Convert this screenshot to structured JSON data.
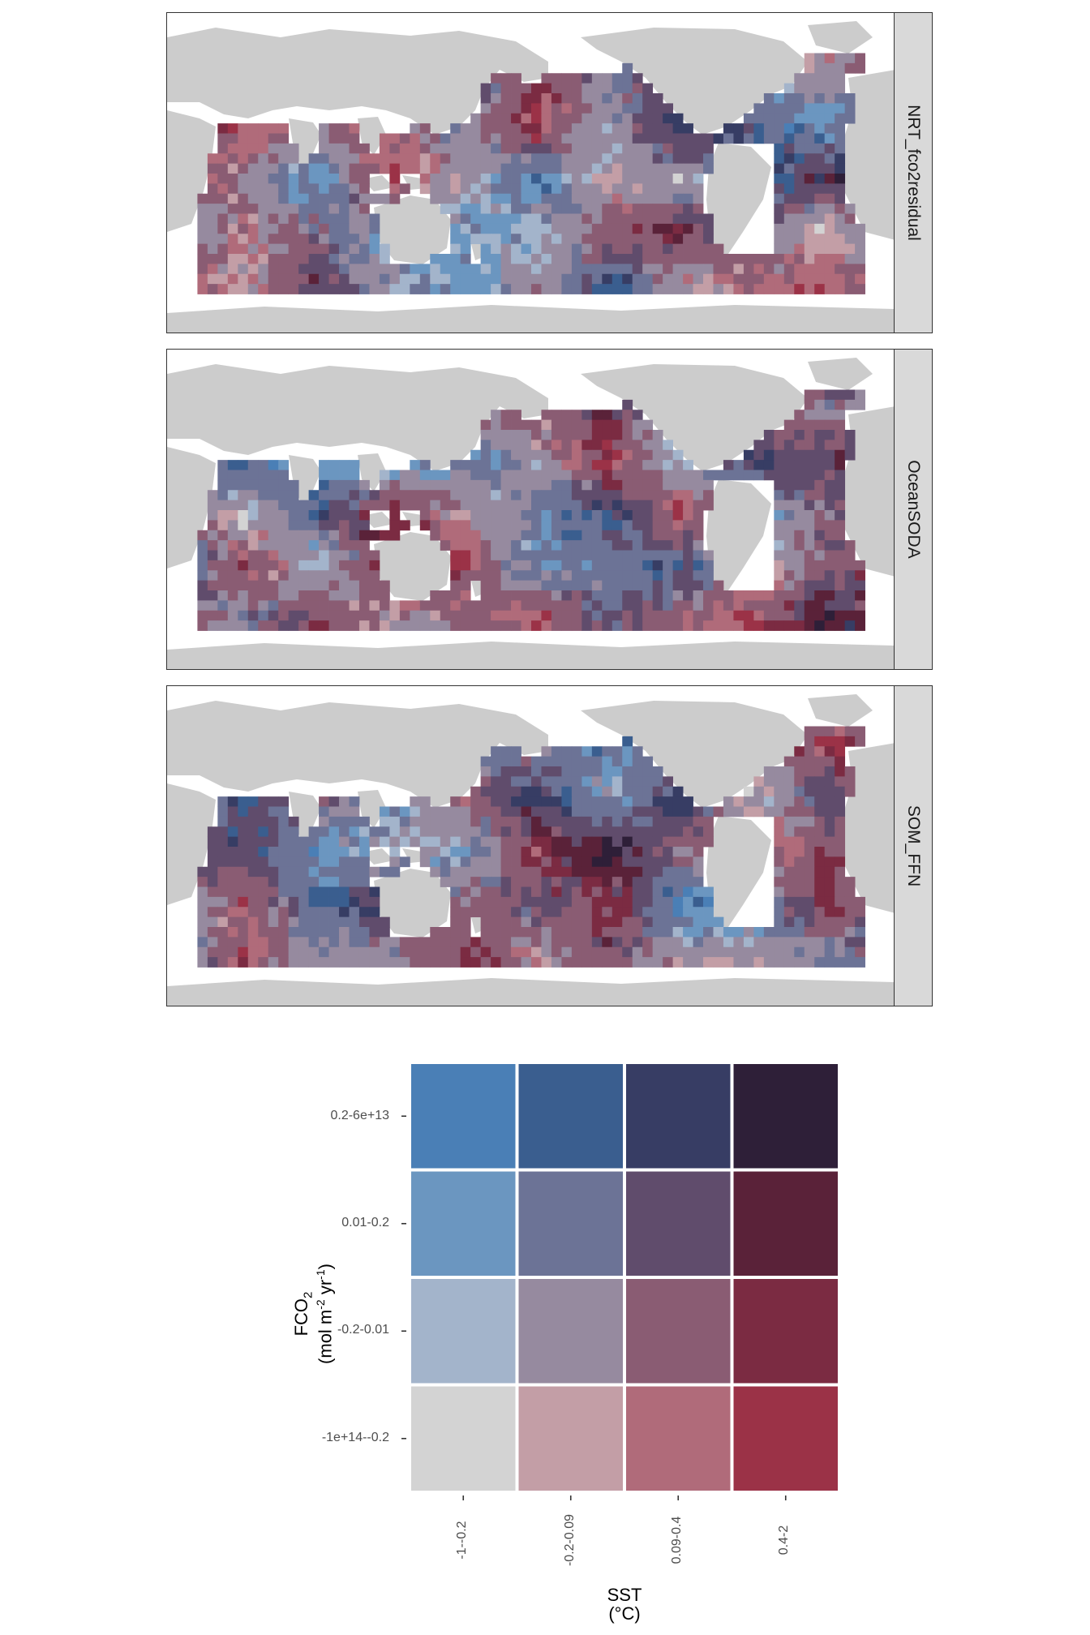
{
  "facets": [
    {
      "label": "NRT_fco2residual",
      "seed": 11
    },
    {
      "label": "OceanSODA",
      "seed": 23
    },
    {
      "label": "SOM_FFN",
      "seed": 37
    }
  ],
  "colors": {
    "land": "#cccccc",
    "panel_bg": "#ffffff",
    "strip_bg": "#d9d9d9",
    "border": "#333333"
  },
  "chart_data": {
    "type": "heatmap",
    "description_of_fill": "bivariate class (FCO2 class x SST class) per ocean grid cell",
    "legend": {
      "x_title": "SST",
      "x_title_unit": "(°C)",
      "y_title": "FCO",
      "y_title_sub": "2",
      "y_title_unit_pre": "(mol m",
      "y_title_unit_exp1": "-2",
      "y_title_unit_mid": " yr",
      "y_title_unit_exp2": "-1",
      "y_title_unit_post": ")",
      "x_categories": [
        "-1--0.2",
        "-0.2-0.09",
        "0.09-0.4",
        "0.4-2"
      ],
      "y_categories": [
        "-1e+14--0.2",
        "-0.2-0.01",
        "0.01-0.2",
        "0.2-6e+13"
      ],
      "tiles": [
        [
          "#d3d3d3",
          "#c39ea6",
          "#b06b7a",
          "#9b3247"
        ],
        [
          "#a3b4cb",
          "#968a9f",
          "#8a5c73",
          "#7b2b42"
        ],
        [
          "#6b96c0",
          "#6c7396",
          "#604c6c",
          "#5a2239"
        ],
        [
          "#4a7fb6",
          "#3a5e8f",
          "#373d64",
          "#2e1f38"
        ]
      ]
    }
  }
}
